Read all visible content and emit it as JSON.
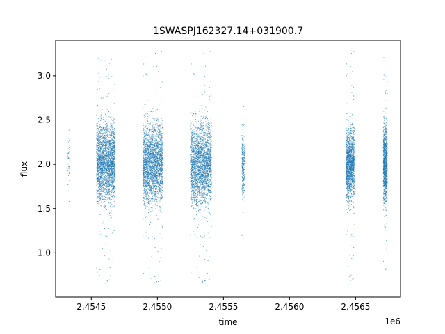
{
  "chart_data": {
    "type": "scatter",
    "title": "1SWASPJ162327.14+031900.7",
    "xlabel": "time",
    "ylabel": "flux",
    "x_offset_label": "1e6",
    "xlim": [
      2.45423,
      2.45684
    ],
    "ylim": [
      0.5,
      3.4
    ],
    "x_ticks": [
      2.4545,
      2.455,
      2.4555,
      2.456,
      2.4565
    ],
    "x_tick_labels": [
      "2.4545",
      "2.4550",
      "2.4555",
      "2.4560",
      "2.4565"
    ],
    "y_ticks": [
      1.0,
      1.5,
      2.0,
      2.5,
      3.0
    ],
    "y_tick_labels": [
      "1.0",
      "1.5",
      "2.0",
      "2.5",
      "3.0"
    ],
    "grid": false,
    "marker_color": "#1f77b4",
    "series": [
      {
        "clusters": [
          {
            "x_range": [
              2.45432,
              2.45434
            ],
            "y_center": 2.02,
            "y_spread": 0.18,
            "y_min": 1.58,
            "y_max": 2.48,
            "count": 40
          },
          {
            "x_range": [
              2.45454,
              2.45468
            ],
            "y_center": 2.02,
            "y_spread": 0.22,
            "y_min": 0.65,
            "y_max": 3.25,
            "count": 2600
          },
          {
            "x_range": [
              2.45489,
              2.45504
            ],
            "y_center": 2.0,
            "y_spread": 0.22,
            "y_min": 0.63,
            "y_max": 3.28,
            "count": 2600
          },
          {
            "x_range": [
              2.45525,
              2.45541
            ],
            "y_center": 2.0,
            "y_spread": 0.23,
            "y_min": 0.64,
            "y_max": 3.28,
            "count": 2600
          },
          {
            "x_range": [
              2.45564,
              2.45566
            ],
            "y_center": 2.02,
            "y_spread": 0.18,
            "y_min": 1.08,
            "y_max": 2.76,
            "count": 260
          },
          {
            "x_range": [
              2.45643,
              2.45649
            ],
            "y_center": 2.0,
            "y_spread": 0.2,
            "y_min": 0.65,
            "y_max": 3.28,
            "count": 1500
          },
          {
            "x_range": [
              2.45671,
              2.45674
            ],
            "y_center": 2.0,
            "y_spread": 0.22,
            "y_min": 0.78,
            "y_max": 3.26,
            "count": 1100
          }
        ]
      }
    ]
  }
}
